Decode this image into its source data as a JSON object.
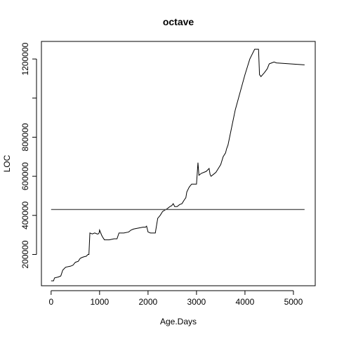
{
  "chart_data": {
    "type": "line",
    "title": "octave",
    "xlabel": "Age.Days",
    "ylabel": "LOC",
    "xlim": [
      -200,
      5450
    ],
    "ylim": [
      40000,
      1290000
    ],
    "x_ticks": [
      0,
      1000,
      2000,
      3000,
      4000,
      5000
    ],
    "x_tick_labels": [
      "0",
      "1000",
      "2000",
      "3000",
      "4000",
      "5000"
    ],
    "y_ticks": [
      200000,
      400000,
      600000,
      800000,
      1000000,
      1200000
    ],
    "y_tick_labels": [
      "200000",
      "400000",
      "600000",
      "800000",
      "",
      "1200000"
    ],
    "grid": false,
    "series": [
      {
        "type": "line",
        "x": [
          0,
          50,
          70,
          150,
          200,
          240,
          300,
          400,
          450,
          500,
          560,
          600,
          640,
          700,
          720,
          740,
          760,
          780,
          800,
          850,
          900,
          950,
          970,
          990,
          1000,
          1040,
          1060,
          1100,
          1200,
          1300,
          1360,
          1400,
          1500,
          1600,
          1650,
          1700,
          1800,
          1900,
          1950,
          1970,
          2000,
          2050,
          2150,
          2200,
          2250,
          2300,
          2400,
          2450,
          2490,
          2520,
          2550,
          2600,
          2650,
          2700,
          2750,
          2780,
          2800,
          2850,
          2900,
          2960,
          3000,
          3030,
          3050,
          3100,
          3200,
          3240,
          3260,
          3280,
          3300,
          3350,
          3400,
          3450,
          3500,
          3550,
          3600,
          3620,
          3650,
          3700,
          3750,
          3800,
          3900,
          4000,
          4100,
          4200,
          4280,
          4300,
          4330,
          4400,
          4460,
          4500,
          4550,
          4600,
          4650,
          5230
        ],
        "y": [
          65000,
          65000,
          80000,
          85000,
          90000,
          120000,
          135000,
          140000,
          145000,
          160000,
          165000,
          180000,
          185000,
          190000,
          190000,
          195000,
          200000,
          200000,
          310000,
          305000,
          310000,
          305000,
          305000,
          310000,
          325000,
          300000,
          290000,
          275000,
          275000,
          280000,
          280000,
          310000,
          310000,
          315000,
          325000,
          330000,
          335000,
          340000,
          340000,
          345000,
          315000,
          310000,
          310000,
          385000,
          400000,
          420000,
          435000,
          445000,
          450000,
          460000,
          445000,
          445000,
          455000,
          460000,
          480000,
          490000,
          520000,
          545000,
          560000,
          560000,
          560000,
          670000,
          605000,
          615000,
          625000,
          635000,
          640000,
          610000,
          600000,
          610000,
          620000,
          640000,
          660000,
          700000,
          720000,
          740000,
          760000,
          820000,
          880000,
          940000,
          1030000,
          1120000,
          1200000,
          1250000,
          1250000,
          1120000,
          1110000,
          1130000,
          1150000,
          1175000,
          1180000,
          1185000,
          1180000,
          1170000
        ]
      },
      {
        "type": "hline",
        "y": [
          430000,
          430000
        ],
        "x": [
          0,
          5230
        ]
      }
    ]
  }
}
